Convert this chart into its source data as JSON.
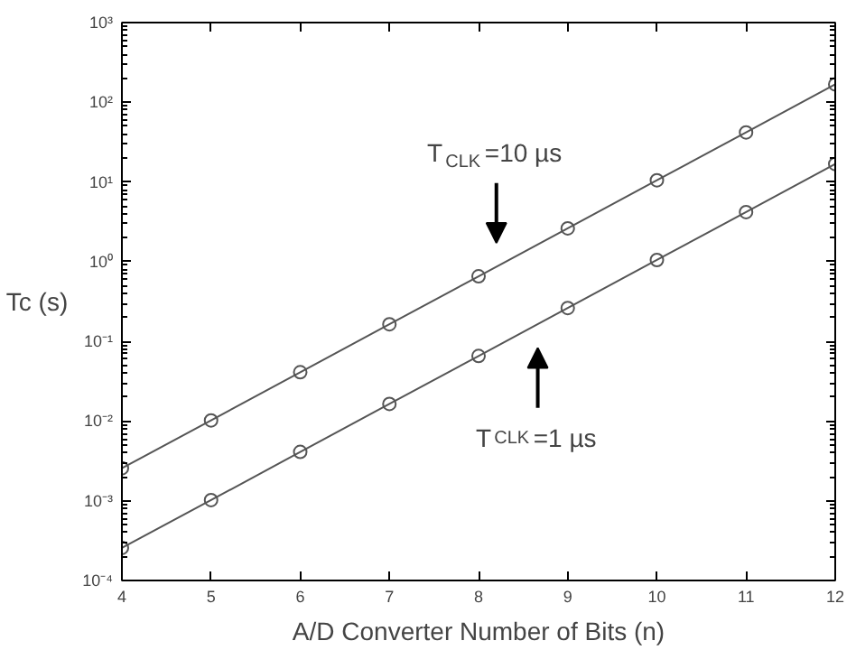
{
  "chart_data": {
    "type": "line",
    "xlabel": "A/D Converter Number of Bits (n)",
    "ylabel": "Tc (s)",
    "x": [
      4,
      5,
      6,
      7,
      8,
      9,
      10,
      11,
      12
    ],
    "series": [
      {
        "color": "#555555",
        "values": [
          0.00256,
          0.0102,
          0.041,
          0.164,
          0.655,
          2.62,
          10.5,
          41.9,
          168
        ]
      },
      {
        "color": "#555555",
        "values": [
          0.000256,
          0.00102,
          0.0041,
          0.0164,
          0.0655,
          0.262,
          1.05,
          4.19,
          16.8
        ]
      }
    ],
    "log": "y",
    "xlim": [
      4,
      12
    ],
    "ylim": [
      0.0001,
      1000
    ],
    "xticks": [
      4,
      5,
      6,
      7,
      8,
      9,
      10,
      11,
      12
    ],
    "yticks": [
      {
        "value": 0.0001,
        "label": "10⁻⁴"
      },
      {
        "value": 0.001,
        "label": "10⁻³"
      },
      {
        "value": 0.01,
        "label": "10⁻²"
      },
      {
        "value": 0.1,
        "label": "10⁻¹"
      },
      {
        "value": 1,
        "label": "10⁰"
      },
      {
        "value": 10,
        "label": "10¹"
      },
      {
        "value": 100,
        "label": "10²"
      },
      {
        "value": 1000,
        "label": "10³"
      }
    ],
    "marker": "circle",
    "line_style": "solid",
    "grid": false,
    "annotations": [
      "T$_{CLK}$=10 µs",
      "T$_{CLK}$=1 µs"
    ]
  }
}
